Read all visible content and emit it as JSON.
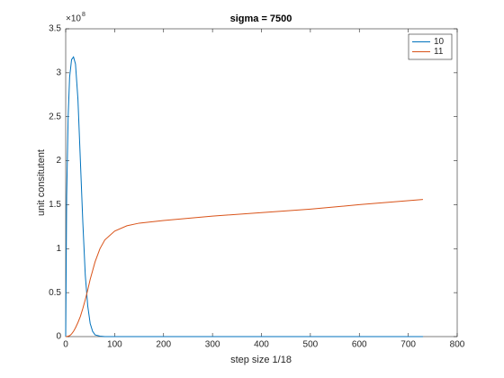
{
  "chart_data": {
    "type": "line",
    "title": "sigma = 7500",
    "x_label": "step size 1/18",
    "y_label": "unit consitutent",
    "y_multiplier_base": "×10",
    "y_multiplier_exp": "8",
    "x": [
      0,
      2,
      5,
      8,
      12,
      16,
      20,
      25,
      30,
      35,
      40,
      45,
      50,
      55,
      60,
      70,
      80,
      100,
      125,
      150,
      200,
      300,
      400,
      500,
      600,
      730
    ],
    "series": [
      {
        "name": "10",
        "color": "#0072bd",
        "values": [
          0,
          1.6,
          2.5,
          2.95,
          3.15,
          3.18,
          3.1,
          2.7,
          2.0,
          1.3,
          0.7,
          0.35,
          0.15,
          0.06,
          0.02,
          0.005,
          0,
          0,
          0,
          0,
          0,
          0,
          0,
          0,
          0,
          0
        ]
      },
      {
        "name": "11",
        "color": "#d95319",
        "values": [
          0,
          0,
          0.005,
          0.01,
          0.03,
          0.06,
          0.1,
          0.16,
          0.23,
          0.32,
          0.42,
          0.53,
          0.65,
          0.75,
          0.85,
          1.0,
          1.1,
          1.2,
          1.26,
          1.29,
          1.32,
          1.37,
          1.41,
          1.45,
          1.5,
          1.56
        ]
      }
    ],
    "xlim": [
      0,
      800
    ],
    "xticks": [
      0,
      100,
      200,
      300,
      400,
      500,
      600,
      700,
      800
    ],
    "ylim": [
      0,
      3.5
    ],
    "yticks": [
      0,
      0.5,
      1,
      1.5,
      2,
      2.5,
      3,
      3.5
    ],
    "legend": "top-right",
    "grid": false
  }
}
